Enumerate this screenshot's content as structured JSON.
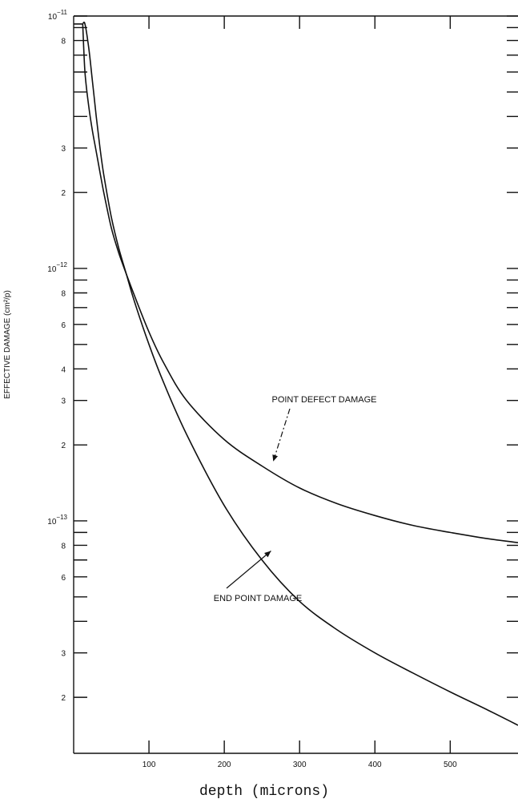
{
  "chart_data": {
    "type": "line",
    "title": "",
    "xlabel": "depth (microns)",
    "ylabel": "EFFECTIVE DAMAGE (cm²/p)",
    "y_scale": "log",
    "xlim": [
      0,
      590
    ],
    "ylim": [
      1.2e-14,
      1e-11
    ],
    "x_ticks": [
      100,
      200,
      300,
      400,
      500
    ],
    "y_tick_labels": [
      {
        "mantissa": "10",
        "exp": "−11",
        "value": 1e-11
      },
      {
        "label": "8",
        "value": 8e-12
      },
      {
        "label": "3",
        "value": 3e-12
      },
      {
        "label": "2",
        "value": 2e-12
      },
      {
        "mantissa": "10",
        "exp": "−12",
        "value": 1e-12
      },
      {
        "label": "8",
        "value": 8e-13
      },
      {
        "label": "6",
        "value": 6e-13
      },
      {
        "label": "4",
        "value": 4e-13
      },
      {
        "label": "3",
        "value": 3e-13
      },
      {
        "label": "2",
        "value": 2e-13
      },
      {
        "mantissa": "10",
        "exp": "−13",
        "value": 1e-13
      },
      {
        "label": "8",
        "value": 8e-14
      },
      {
        "label": "6",
        "value": 6e-14
      },
      {
        "label": "3",
        "value": 3e-14
      },
      {
        "label": "2",
        "value": 2e-14
      }
    ],
    "series": [
      {
        "name": "POINT DEFECT DAMAGE",
        "x": [
          12,
          15,
          20,
          25,
          30,
          35,
          40,
          50,
          60,
          70,
          80,
          100,
          120,
          150,
          200,
          250,
          300,
          350,
          400,
          450,
          500,
          550,
          590
        ],
        "y": [
          9.3e-12,
          6e-12,
          4.4e-12,
          3.5e-12,
          2.9e-12,
          2.4e-12,
          2e-12,
          1.45e-12,
          1.15e-12,
          9.5e-13,
          7.9e-13,
          5.6e-13,
          4.2e-13,
          3e-13,
          2.1e-13,
          1.65e-13,
          1.35e-13,
          1.17e-13,
          1.05e-13,
          9.6e-14,
          9e-14,
          8.5e-14,
          8.2e-14
        ]
      },
      {
        "name": "END POINT DAMAGE",
        "x": [
          12,
          15,
          20,
          25,
          30,
          35,
          40,
          50,
          60,
          70,
          80,
          100,
          120,
          150,
          200,
          250,
          300,
          350,
          400,
          450,
          500,
          550,
          590
        ],
        "y": [
          9.3e-12,
          9.3e-12,
          7.5e-12,
          5.5e-12,
          4e-12,
          3e-12,
          2.35e-12,
          1.6e-12,
          1.2e-12,
          9.5e-13,
          7.5e-13,
          5e-13,
          3.5e-13,
          2.2e-13,
          1.15e-13,
          7e-14,
          4.8e-14,
          3.7e-14,
          3e-14,
          2.5e-14,
          2.1e-14,
          1.78e-14,
          1.55e-14
        ]
      }
    ],
    "annotations": [
      {
        "text": "POINT  DEFECT DAMAGE",
        "target_series": 0
      },
      {
        "text": "END POINT DAMAGE",
        "target_series": 1
      }
    ],
    "grid": false,
    "legend": "none"
  }
}
